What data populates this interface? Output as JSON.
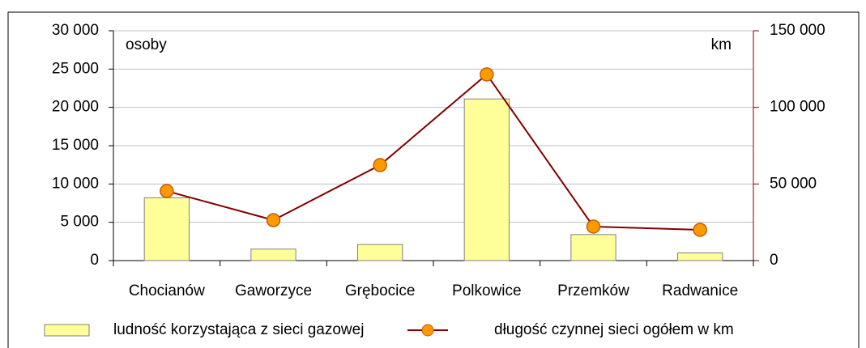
{
  "chart_data": {
    "type": "bar_line",
    "categories": [
      "Chocianów",
      "Gaworzyce",
      "Grębocice",
      "Polkowice",
      "Przemków",
      "Radwanice"
    ],
    "series": [
      {
        "name": "ludność korzystająca z sieci gazowej",
        "type": "bar",
        "color": "#ffff99",
        "values": [
          8200,
          1500,
          2100,
          21100,
          3400,
          1000
        ]
      },
      {
        "name": "długość czynnej sieci ogółem w km",
        "type": "line",
        "axis": "y2",
        "color": "#800000",
        "marker_color": "#ff9900",
        "values": [
          45400,
          26400,
          62300,
          121500,
          22200,
          20100
        ]
      }
    ],
    "ylim": [
      0,
      30000
    ],
    "yticks": [
      0,
      {
        "value": 5000,
        "label": "5 000"
      },
      {
        "value": 10000,
        "label": "10 000"
      },
      {
        "value": 15000,
        "label": "15 000"
      },
      {
        "value": 20000,
        "label": "20 000"
      },
      {
        "value": 25000,
        "label": "25 000"
      },
      {
        "value": 30000,
        "label": "30 000"
      }
    ],
    "y2lim": [
      0,
      150000
    ],
    "y2ticks": [
      0,
      {
        "value": 50000,
        "label": "50 000"
      },
      {
        "value": 100000,
        "label": "100 000"
      },
      {
        "value": 150000,
        "label": "150 000"
      }
    ],
    "y_label": "osoby",
    "y2_label": "km",
    "grid": true,
    "legend": "bottom"
  }
}
